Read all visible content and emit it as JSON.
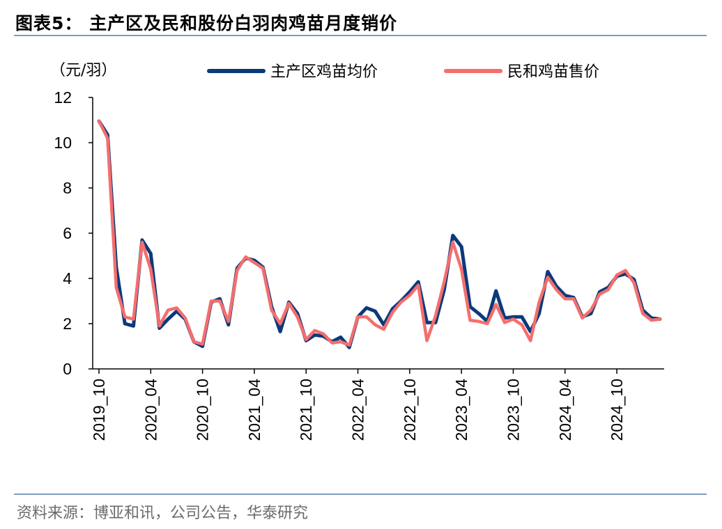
{
  "title": "图表5：  主产区及民和股份白羽肉鸡苗月度销价",
  "source": "资料来源：博亚和讯，公司公告，华泰研究",
  "chart_data": {
    "type": "line",
    "unit_label": "（元/羽）",
    "ylim": [
      0,
      12
    ],
    "yticks": [
      0,
      2,
      4,
      6,
      8,
      10,
      12
    ],
    "grid": false,
    "legend_position": "top",
    "xtick_labels": [
      "2019_10",
      "2020_04",
      "2020_10",
      "2021_04",
      "2021_10",
      "2022_04",
      "2022_10",
      "2023_04",
      "2023_10",
      "2024_04",
      "2024_10"
    ],
    "x": [
      "2019_10",
      "2019_11",
      "2019_12",
      "2020_01",
      "2020_02",
      "2020_03",
      "2020_04",
      "2020_05",
      "2020_06",
      "2020_07",
      "2020_08",
      "2020_09",
      "2020_10",
      "2020_11",
      "2020_12",
      "2021_01",
      "2021_02",
      "2021_03",
      "2021_04",
      "2021_05",
      "2021_06",
      "2021_07",
      "2021_08",
      "2021_09",
      "2021_10",
      "2021_11",
      "2021_12",
      "2022_01",
      "2022_02",
      "2022_03",
      "2022_04",
      "2022_05",
      "2022_06",
      "2022_07",
      "2022_08",
      "2022_09",
      "2022_10",
      "2022_11",
      "2022_12",
      "2023_01",
      "2023_02",
      "2023_03",
      "2023_04",
      "2023_05",
      "2023_06",
      "2023_07",
      "2023_08",
      "2023_09",
      "2023_10",
      "2023_11",
      "2023_12",
      "2024_01",
      "2024_02",
      "2024_03",
      "2024_04",
      "2024_05",
      "2024_06",
      "2024_07",
      "2024_08",
      "2024_09",
      "2024_10",
      "2024_11",
      "2024_12",
      "2025_01",
      "2025_02",
      "2025_03"
    ],
    "series": [
      {
        "name": "主产区鸡苗均价",
        "color": "#0b3a7a",
        "values": [
          10.95,
          10.35,
          4.5,
          2.0,
          1.9,
          5.7,
          5.1,
          1.8,
          2.2,
          2.55,
          2.2,
          1.2,
          1.0,
          2.95,
          3.1,
          1.95,
          4.45,
          4.9,
          4.8,
          4.5,
          2.75,
          1.65,
          2.95,
          2.45,
          1.25,
          1.5,
          1.45,
          1.2,
          1.4,
          0.95,
          2.3,
          2.7,
          2.55,
          1.95,
          2.65,
          3.0,
          3.4,
          3.85,
          2.05,
          2.05,
          3.5,
          5.9,
          5.4,
          2.75,
          2.45,
          2.1,
          3.45,
          2.25,
          2.3,
          2.3,
          1.65,
          2.45,
          4.3,
          3.65,
          3.25,
          3.15,
          2.3,
          2.45,
          3.4,
          3.6,
          4.1,
          4.2,
          3.95,
          2.6,
          2.25,
          2.2
        ]
      },
      {
        "name": "民和鸡苗售价",
        "color": "#f46e6e",
        "values": [
          10.95,
          10.2,
          3.6,
          2.3,
          2.2,
          5.6,
          4.4,
          1.9,
          2.6,
          2.7,
          2.25,
          1.2,
          1.1,
          3.0,
          3.0,
          2.1,
          4.35,
          4.95,
          4.7,
          4.45,
          2.6,
          2.0,
          2.9,
          2.3,
          1.3,
          1.7,
          1.55,
          1.15,
          1.2,
          1.05,
          2.3,
          2.3,
          1.95,
          1.75,
          2.5,
          2.95,
          3.25,
          3.7,
          1.25,
          2.35,
          3.85,
          5.6,
          4.4,
          2.15,
          2.1,
          2.0,
          2.85,
          2.05,
          2.2,
          1.95,
          1.25,
          2.95,
          4.05,
          3.5,
          3.1,
          3.1,
          2.25,
          2.6,
          3.3,
          3.5,
          4.15,
          4.35,
          3.8,
          2.45,
          2.15,
          2.2
        ]
      }
    ]
  }
}
